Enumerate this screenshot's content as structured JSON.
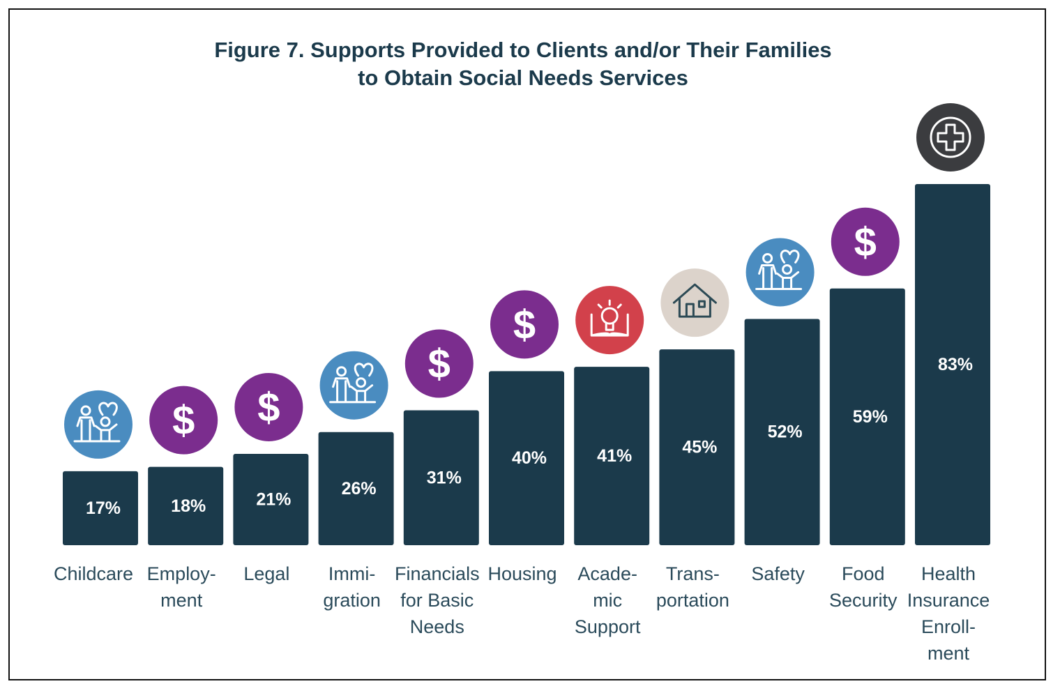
{
  "chart_data": {
    "type": "bar",
    "title_lines": [
      "Figure 7. Supports Provided to Clients and/or Their Families",
      "to Obtain Social Needs Services"
    ],
    "categories": [
      [
        "Childcare"
      ],
      [
        "Employ-",
        "ment"
      ],
      [
        "Legal"
      ],
      [
        "Immi-",
        "gration"
      ],
      [
        "Financials",
        "for Basic",
        "Needs"
      ],
      [
        "Housing"
      ],
      [
        "Acade-",
        "mic",
        "Support"
      ],
      [
        "Trans-",
        "portation"
      ],
      [
        "Safety"
      ],
      [
        "Food",
        "Security"
      ],
      [
        "Health",
        "Insurance",
        "Enroll-",
        "ment"
      ]
    ],
    "values": [
      17,
      18,
      21,
      26,
      31,
      40,
      41,
      45,
      52,
      59,
      83
    ],
    "value_labels": [
      "17%",
      "18%",
      "21%",
      "26%",
      "31%",
      "40%",
      "41%",
      "45%",
      "52%",
      "59%",
      "83%"
    ],
    "icons": [
      "family-icon",
      "dollar-icon",
      "dollar-icon",
      "family-icon",
      "dollar-icon",
      "dollar-icon",
      "lightbulb-book-icon",
      "house-icon",
      "family-icon",
      "dollar-icon",
      "medical-cross-icon"
    ],
    "ylim": [
      0,
      100
    ],
    "xlabel": "",
    "ylabel": "",
    "grid": false,
    "colors": {
      "bar": "#1b3a4b",
      "title": "#1b3a4b",
      "label": "#2a4a5a",
      "family-icon": "#4a8cc0",
      "dollar-icon": "#7b2d8e",
      "lightbulb-book-icon": "#d2414b",
      "house-icon": "#dcd3cb",
      "medical-cross-icon": "#3b3c3f"
    }
  }
}
